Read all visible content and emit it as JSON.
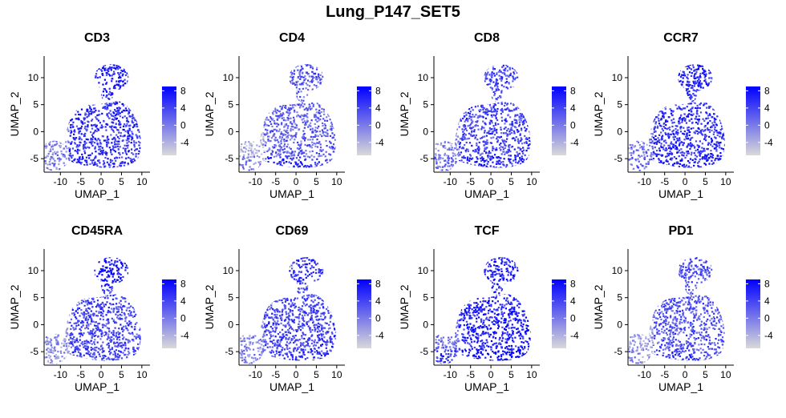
{
  "figure": {
    "title": "Lung_P147_SET5"
  },
  "chart_data": [
    {
      "type": "scatter",
      "title": "CD3",
      "xlabel": "UMAP_1",
      "ylabel": "UMAP_2",
      "x_ticks": [
        -10,
        -5,
        0,
        5,
        10
      ],
      "y_ticks": [
        -5,
        0,
        5,
        10
      ],
      "xlim": [
        -14,
        12
      ],
      "ylim": [
        -7.5,
        14
      ],
      "colorbar": {
        "ticks": [
          8,
          4,
          0,
          -4
        ],
        "range": [
          -7,
          9
        ],
        "low_color": "#d9d9d9",
        "high_color": "#0000ff"
      },
      "intensity": 0.78,
      "rim": 0.0,
      "head": 0.1
    },
    {
      "type": "scatter",
      "title": "CD4",
      "xlabel": "UMAP_1",
      "ylabel": "UMAP_2",
      "x_ticks": [
        -10,
        -5,
        0,
        5,
        10
      ],
      "y_ticks": [
        -5,
        0,
        5,
        10
      ],
      "xlim": [
        -14,
        12
      ],
      "ylim": [
        -7.5,
        14
      ],
      "colorbar": {
        "ticks": [
          8,
          4,
          0,
          -4
        ],
        "range": [
          -7,
          9
        ],
        "low_color": "#d9d9d9",
        "high_color": "#0000ff"
      },
      "intensity": 0.55,
      "rim": 0.25,
      "head": 0.05
    },
    {
      "type": "scatter",
      "title": "CD8",
      "xlabel": "UMAP_1",
      "ylabel": "UMAP_2",
      "x_ticks": [
        -10,
        -5,
        0,
        5,
        10
      ],
      "y_ticks": [
        -5,
        0,
        5,
        10
      ],
      "xlim": [
        -14,
        12
      ],
      "ylim": [
        -7.5,
        14
      ],
      "colorbar": {
        "ticks": [
          8,
          4,
          0,
          -4
        ],
        "range": [
          -7,
          9
        ],
        "low_color": "#d9d9d9",
        "high_color": "#0000ff"
      },
      "intensity": 0.7,
      "rim": 0.15,
      "head": 0.0
    },
    {
      "type": "scatter",
      "title": "CCR7",
      "xlabel": "UMAP_1",
      "ylabel": "UMAP_2",
      "x_ticks": [
        -10,
        -5,
        0,
        5,
        10
      ],
      "y_ticks": [
        -5,
        0,
        5,
        10
      ],
      "xlim": [
        -14,
        12
      ],
      "ylim": [
        -7.5,
        14
      ],
      "colorbar": {
        "ticks": [
          8,
          4,
          0,
          -4
        ],
        "range": [
          -7,
          9
        ],
        "low_color": "#d9d9d9",
        "high_color": "#0000ff"
      },
      "intensity": 0.8,
      "rim": 0.1,
      "head": 0.05
    },
    {
      "type": "scatter",
      "title": "CD45RA",
      "xlabel": "UMAP_1",
      "ylabel": "UMAP_2",
      "x_ticks": [
        -10,
        -5,
        0,
        5,
        10
      ],
      "y_ticks": [
        -5,
        0,
        5,
        10
      ],
      "xlim": [
        -14,
        12
      ],
      "ylim": [
        -7.5,
        14
      ],
      "colorbar": {
        "ticks": [
          8,
          4,
          0,
          -4
        ],
        "range": [
          -7,
          9
        ],
        "low_color": "#d9d9d9",
        "high_color": "#0000ff"
      },
      "intensity": 0.68,
      "rim": 0.0,
      "head": 0.3
    },
    {
      "type": "scatter",
      "title": "CD69",
      "xlabel": "UMAP_1",
      "ylabel": "UMAP_2",
      "x_ticks": [
        -10,
        -5,
        0,
        5,
        10
      ],
      "y_ticks": [
        -5,
        0,
        5,
        10
      ],
      "xlim": [
        -14,
        12
      ],
      "ylim": [
        -7.5,
        14
      ],
      "colorbar": {
        "ticks": [
          8,
          4,
          0,
          -4
        ],
        "range": [
          -7,
          9
        ],
        "low_color": "#d9d9d9",
        "high_color": "#0000ff"
      },
      "intensity": 0.7,
      "rim": 0.05,
      "head": 0.1
    },
    {
      "type": "scatter",
      "title": "TCF",
      "xlabel": "UMAP_1",
      "ylabel": "UMAP_2",
      "x_ticks": [
        -10,
        -5,
        0,
        5,
        10
      ],
      "y_ticks": [
        -5,
        0,
        5,
        10
      ],
      "xlim": [
        -14,
        12
      ],
      "ylim": [
        -7.5,
        14
      ],
      "colorbar": {
        "ticks": [
          8,
          4,
          0,
          -4
        ],
        "range": [
          -7,
          9
        ],
        "low_color": "#d9d9d9",
        "high_color": "#0000ff"
      },
      "intensity": 0.86,
      "rim": 0.25,
      "head": 0.05
    },
    {
      "type": "scatter",
      "title": "PD1",
      "xlabel": "UMAP_1",
      "ylabel": "UMAP_2",
      "x_ticks": [
        -10,
        -5,
        0,
        5,
        10
      ],
      "y_ticks": [
        -5,
        0,
        5,
        10
      ],
      "xlim": [
        -14,
        12
      ],
      "ylim": [
        -7.5,
        14
      ],
      "colorbar": {
        "ticks": [
          8,
          4,
          0,
          -4
        ],
        "range": [
          -7,
          9
        ],
        "low_color": "#d9d9d9",
        "high_color": "#0000ff"
      },
      "intensity": 0.62,
      "rim": 0.1,
      "head": 0.0
    }
  ]
}
